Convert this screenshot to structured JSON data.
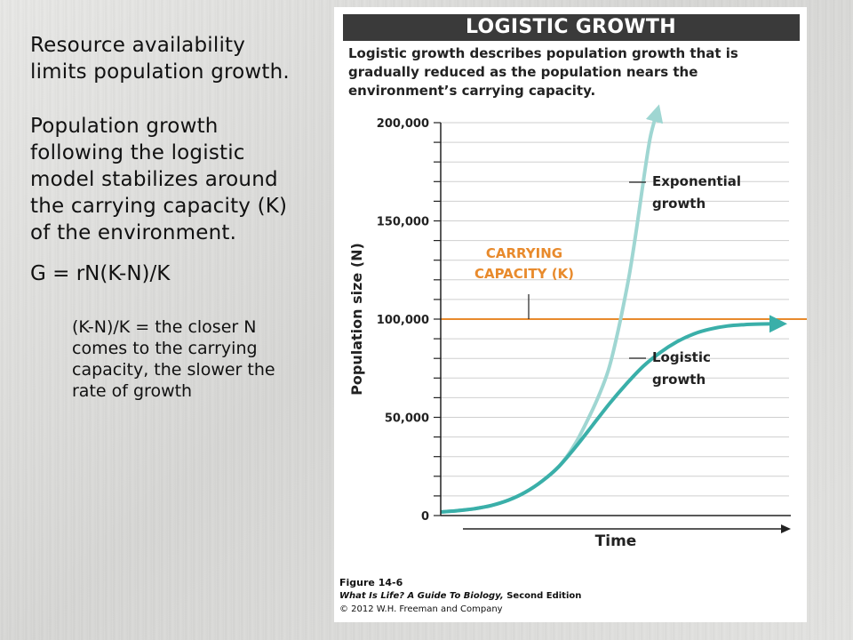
{
  "slide": {
    "para1": "Resource availability limits population growth.",
    "para2": "Population growth following the logistic model stabilizes around the carrying capacity (K) of the environment.",
    "formula": "G = rN(K-N)/K",
    "note": "(K-N)/K = the closer N comes to the carrying capacity, the slower the rate of growth"
  },
  "figure": {
    "title": "LOGISTIC GROWTH",
    "caption": "Logistic growth describes population growth that is gradually reduced as the population nears the environment’s carrying capacity.",
    "credit": {
      "figure_label": "Figure 14-6",
      "book": "What Is Life? A Guide To Biology,",
      "edition": "Second Edition",
      "copyright": "© 2012 W.H. Freeman and Company"
    }
  },
  "colors": {
    "logistic": "#3aafa9",
    "exponential": "#9fd6d2",
    "carrying_capacity": "#e88a2c",
    "axis": "#222222",
    "grid": "#cfcfcf"
  },
  "chart_data": {
    "type": "line",
    "title": "LOGISTIC GROWTH",
    "xlabel": "Time",
    "ylabel": "Population size (N)",
    "ylim": [
      0,
      200000
    ],
    "x_ticks_labeled": false,
    "y_ticks": [
      "0",
      "50,000",
      "100,000",
      "150,000",
      "200,000"
    ],
    "y_tick_values": [
      0,
      50000,
      100000,
      150000,
      200000
    ],
    "grid": true,
    "carrying_capacity": {
      "label_line1": "CARRYING",
      "label_line2": "CAPACITY (K)",
      "value": 100000
    },
    "series": [
      {
        "name": "Logistic growth",
        "label_line1": "Logistic",
        "label_line2": "growth",
        "x": [
          0,
          0.5,
          1,
          1.5,
          2,
          2.5,
          3,
          3.5,
          4,
          4.5,
          5,
          5.5,
          6,
          6.5,
          7,
          7.5,
          8,
          8.5,
          9,
          9.5,
          10
        ],
        "y": [
          1800,
          2500,
          3500,
          5100,
          7800,
          11800,
          17500,
          25000,
          35000,
          46000,
          57000,
          67000,
          76000,
          83000,
          88500,
          92500,
          95000,
          96500,
          97200,
          97500,
          97600
        ]
      },
      {
        "name": "Exponential growth",
        "label_line1": "Exponential",
        "label_line2": "growth",
        "x": [
          0,
          0.5,
          1,
          1.5,
          2,
          2.5,
          3,
          3.5,
          4,
          4.5,
          4.8,
          5,
          5.2,
          5.4,
          5.6,
          5.8,
          6.0,
          6.2,
          6.4
        ],
        "y": [
          1800,
          2500,
          3500,
          5100,
          7800,
          11800,
          17500,
          25000,
          37000,
          54000,
          66000,
          76000,
          90000,
          106000,
          124000,
          146000,
          170000,
          192000,
          205000
        ]
      }
    ]
  }
}
